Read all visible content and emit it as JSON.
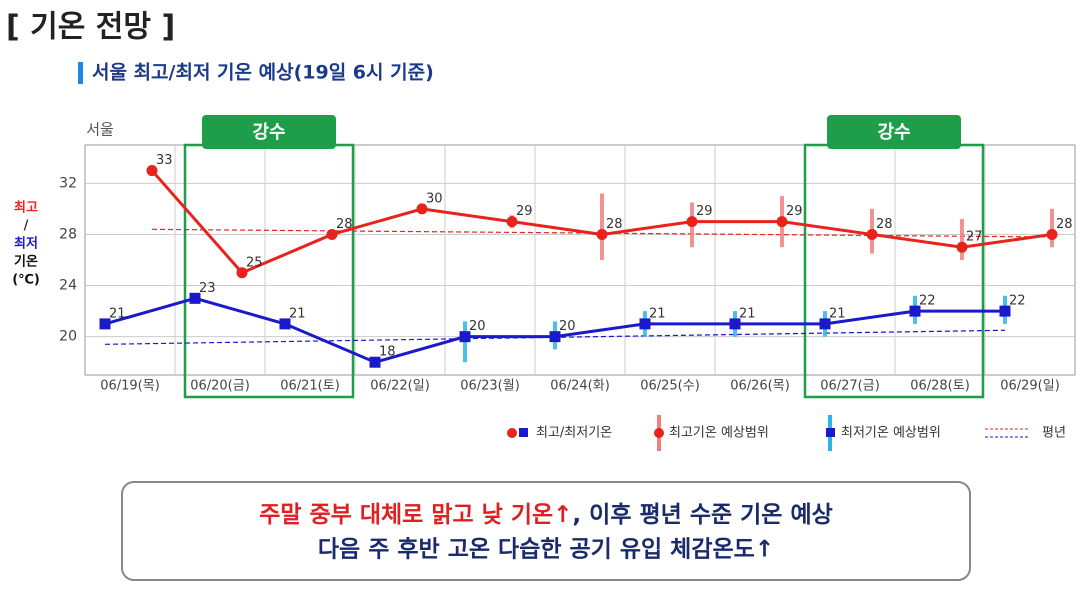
{
  "header": {
    "title": "[ 기온 전망 ]",
    "subtitle": "서울 최고/최저 기온 예상(19일 6시 기준)"
  },
  "chart_data": {
    "type": "line",
    "location_label": "서울",
    "y_label": [
      "최고",
      "/",
      "최저",
      "기온",
      "(℃)"
    ],
    "categories": [
      "06/19(목)",
      "06/20(금)",
      "06/21(토)",
      "06/22(일)",
      "06/23(월)",
      "06/24(화)",
      "06/25(수)",
      "06/26(목)",
      "06/27(금)",
      "06/28(토)",
      "06/29(일)"
    ],
    "series": [
      {
        "name": "최고/최저기온",
        "color": "#e8231c",
        "values": [
          33,
          25,
          28,
          30,
          29,
          28,
          29,
          29,
          28,
          27,
          28
        ]
      },
      {
        "name": "최고/최저기온",
        "color": "#1a1acc",
        "values": [
          21,
          23,
          21,
          18,
          20,
          20,
          21,
          21,
          21,
          22,
          22
        ]
      }
    ],
    "max_range": {
      "name": "최고기온 예상범위",
      "color": "#f08080",
      "low": [
        null,
        null,
        null,
        null,
        28.5,
        26,
        27,
        27,
        26.5,
        26,
        27
      ],
      "high": [
        null,
        null,
        null,
        null,
        29.5,
        31.2,
        30.5,
        31,
        30,
        29.2,
        30
      ]
    },
    "min_range": {
      "name": "최저기온 예상범위",
      "color": "#29b6e8",
      "low": [
        null,
        null,
        null,
        null,
        18,
        19,
        20,
        20,
        20,
        21,
        21
      ],
      "high": [
        null,
        null,
        null,
        null,
        21.2,
        21.2,
        22,
        22,
        22,
        23.2,
        23.2
      ]
    },
    "normal": {
      "name": "평년",
      "max": [
        28.4,
        27.8
      ],
      "min": [
        19.4,
        20.5
      ]
    },
    "annotations": [
      {
        "text": "강수",
        "from": 1,
        "to": 2
      },
      {
        "text": "강수",
        "from": 8,
        "to": 9
      }
    ],
    "ylim": [
      17,
      35
    ],
    "yticks": [
      20,
      24,
      28,
      32
    ],
    "grid": true
  },
  "summary": {
    "line1_red": "주말 중부 대체로 맑고 낮 기온↑",
    "line1_navy": ", 이후 평년 수준 기온 예상",
    "line2": "다음 주 후반 고온 다습한 공기 유입 체감온도↑"
  }
}
